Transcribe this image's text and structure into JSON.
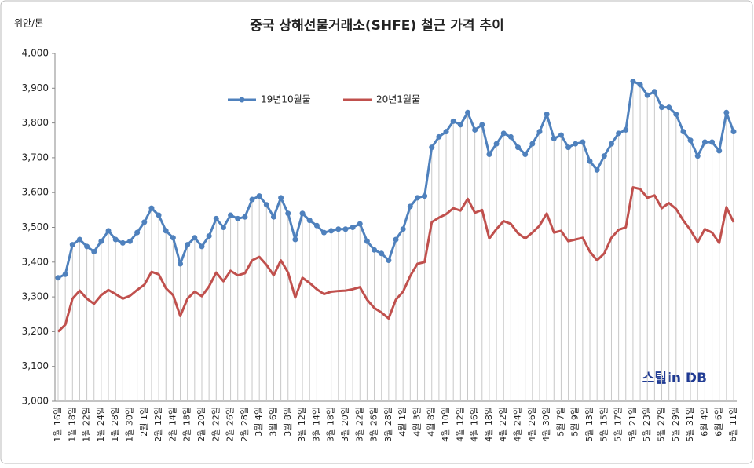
{
  "chart_data": {
    "type": "line",
    "title": "중국 상해선물거래소(SHFE)  철근 가격 추이",
    "y_label": "위안/톤",
    "watermark": "스틸in DB",
    "legend": "top",
    "ylim": [
      3000,
      4000
    ],
    "yticks": [
      {
        "value": 3000,
        "label": "3,000"
      },
      {
        "value": 3100,
        "label": "3,100"
      },
      {
        "value": 3200,
        "label": "3,200"
      },
      {
        "value": 3300,
        "label": "3,300"
      },
      {
        "value": 3400,
        "label": "3,400"
      },
      {
        "value": 3500,
        "label": "3,500"
      },
      {
        "value": 3600,
        "label": "3,600"
      },
      {
        "value": 3700,
        "label": "3,700"
      },
      {
        "value": 3800,
        "label": "3,800"
      },
      {
        "value": 3900,
        "label": "3,900"
      },
      {
        "value": 4000,
        "label": "4,000"
      }
    ],
    "categories": [
      "1월 16일",
      null,
      "1월 18일",
      null,
      "1월 22일",
      null,
      "1월 24일",
      null,
      "1월 28일",
      null,
      "1월 30일",
      null,
      "2월 1일",
      null,
      "2월 12일",
      null,
      "2월 14일",
      null,
      "2월 18일",
      null,
      "2월 20일",
      null,
      "2월 22일",
      null,
      "2월 26일",
      null,
      "2월 28일",
      null,
      "3월 4일",
      null,
      "3월 6일",
      null,
      "3월 8일",
      null,
      "3월 12일",
      null,
      "3월 14일",
      null,
      "3월 18일",
      null,
      "3월 20일",
      null,
      "3월 22일",
      null,
      "3월 26일",
      null,
      "3월 28일",
      null,
      "4월 1일",
      null,
      "4월 3일",
      null,
      "4월 8일",
      null,
      "4월 10일",
      null,
      "4월 12일",
      null,
      "4월 16일",
      null,
      "4월 18일",
      null,
      "4월 22일",
      null,
      "4월 24일",
      null,
      "4월 26일",
      null,
      "4월 30일",
      null,
      "5월 7일",
      null,
      "5월 9일",
      null,
      "5월 13일",
      null,
      "5월 15일",
      null,
      "5월 17일",
      null,
      "5월 21일",
      null,
      "5월 23일",
      null,
      "5월 27일",
      null,
      "5월 29일",
      null,
      "5월 31일",
      null,
      "6월 4일",
      null,
      "6월 6일",
      null,
      "6월 11일"
    ],
    "series": [
      {
        "name": "19년10월물",
        "color": "#4f81bd",
        "values": [
          3355,
          3365,
          3450,
          3465,
          3445,
          3430,
          3460,
          3490,
          3465,
          3455,
          3460,
          3485,
          3515,
          3555,
          3535,
          3490,
          3470,
          3395,
          3450,
          3470,
          3445,
          3475,
          3525,
          3500,
          3535,
          3525,
          3530,
          3580,
          3590,
          3565,
          3530,
          3585,
          3540,
          3465,
          3540,
          3520,
          3505,
          3485,
          3490,
          3495,
          3495,
          3500,
          3510,
          3460,
          3435,
          3425,
          3405,
          3465,
          3495,
          3560,
          3585,
          3590,
          3730,
          3760,
          3775,
          3805,
          3795,
          3830,
          3780,
          3795,
          3710,
          3740,
          3770,
          3760,
          3730,
          3710,
          3740,
          3775,
          3825,
          3755,
          3765,
          3730,
          3740,
          3745,
          3690,
          3665,
          3705,
          3740,
          3770,
          3780,
          3920,
          3910,
          3880,
          3890,
          3845,
          3845,
          3825,
          3775,
          3750,
          3705,
          3745,
          3745,
          3720,
          3830,
          3775
        ]
      },
      {
        "name": "20년1월물",
        "color": "#c0504d",
        "values": [
          3200,
          3220,
          3295,
          3318,
          3295,
          3280,
          3305,
          3320,
          3308,
          3295,
          3303,
          3320,
          3335,
          3372,
          3365,
          3325,
          3305,
          3245,
          3295,
          3315,
          3302,
          3330,
          3370,
          3345,
          3375,
          3362,
          3368,
          3405,
          3415,
          3392,
          3362,
          3405,
          3370,
          3298,
          3355,
          3340,
          3322,
          3308,
          3315,
          3317,
          3318,
          3322,
          3328,
          3292,
          3268,
          3255,
          3238,
          3292,
          3315,
          3360,
          3395,
          3400,
          3515,
          3528,
          3538,
          3555,
          3548,
          3582,
          3542,
          3550,
          3468,
          3495,
          3518,
          3510,
          3483,
          3468,
          3485,
          3505,
          3540,
          3485,
          3490,
          3460,
          3465,
          3470,
          3430,
          3405,
          3425,
          3470,
          3493,
          3500,
          3615,
          3610,
          3585,
          3592,
          3555,
          3570,
          3553,
          3520,
          3492,
          3457,
          3495,
          3485,
          3455,
          3558,
          3515
        ]
      }
    ]
  }
}
